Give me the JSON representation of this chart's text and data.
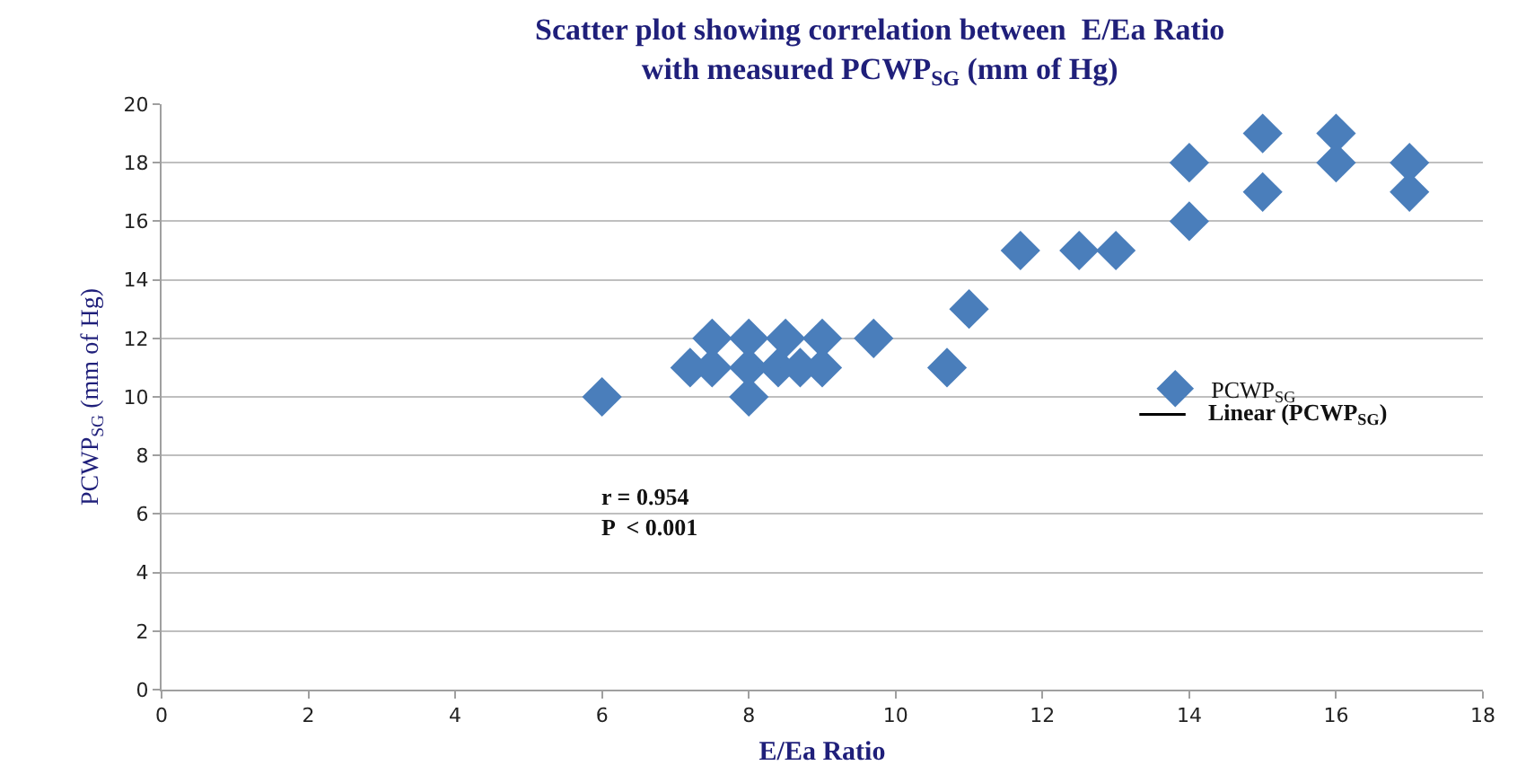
{
  "chart_data": {
    "type": "scatter",
    "title": "Scatter plot showing correlation between  E/Ea Ratio\nwith measured PCWP$_{SG}$ (mm of Hg)",
    "xlabel": "E/Ea Ratio",
    "ylabel": "PCWP$_{SG}$ (mm of Hg)",
    "series": [
      {
        "name": "PCWP$_{SG}$",
        "color": "#4a7ebb",
        "marker": "diamond",
        "x": [
          6,
          8,
          7.2,
          7.5,
          8,
          8.4,
          8.7,
          9,
          10.7,
          7.5,
          8,
          8.5,
          9,
          9.7,
          11,
          11.7,
          12.5,
          13,
          14,
          14,
          15,
          15,
          16,
          16,
          17,
          17
        ],
        "values": [
          10,
          10,
          11,
          11,
          11,
          11,
          11,
          11,
          11,
          12,
          12,
          12,
          12,
          12,
          13,
          15,
          15,
          15,
          16,
          18,
          17,
          19,
          18,
          19,
          17,
          18
        ]
      },
      {
        "name": "Linear (PCWP$_{SG}$)",
        "type": "line",
        "color": "#000000"
      }
    ],
    "xlim": [
      0,
      18
    ],
    "xticks": [
      0,
      2,
      4,
      6,
      8,
      10,
      12,
      14,
      16,
      18
    ],
    "ylim": [
      0,
      20
    ],
    "yticks": [
      0,
      2,
      4,
      6,
      8,
      10,
      12,
      14,
      16,
      18,
      20
    ],
    "grid": "y",
    "legend": "right",
    "annotations": [
      "r = 0.954\nP  < 0.001"
    ]
  }
}
